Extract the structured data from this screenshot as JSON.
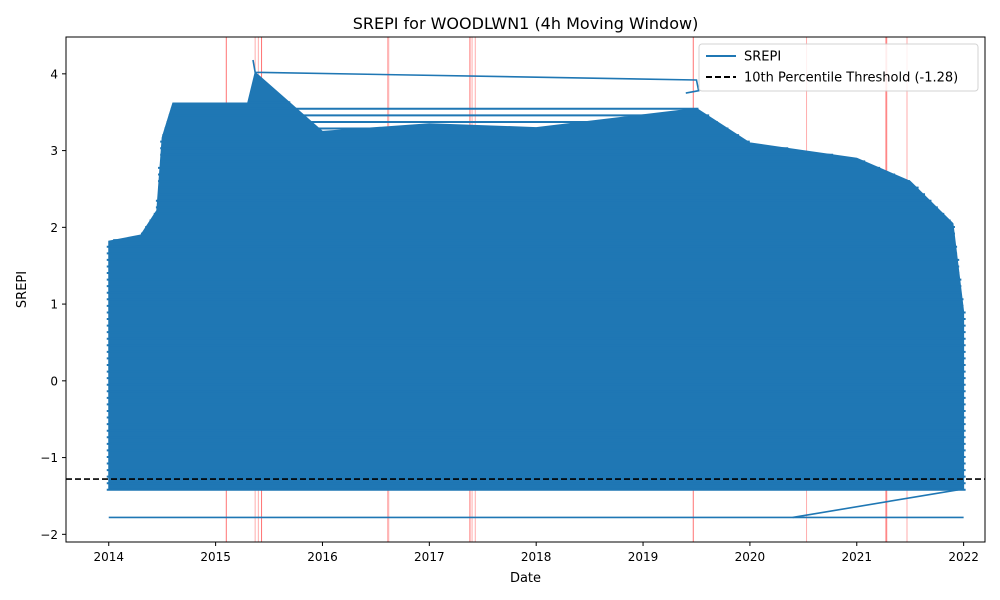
{
  "chart_data": {
    "type": "line",
    "title": "SREPI for WOODLWN1 (4h Moving Window)",
    "xlabel": "Date",
    "ylabel": "SREPI",
    "x_range": [
      2013.6,
      2022.2
    ],
    "y_range": [
      -2.1,
      4.48
    ],
    "x_ticks": [
      "2014",
      "2015",
      "2016",
      "2017",
      "2018",
      "2019",
      "2020",
      "2021",
      "2022"
    ],
    "y_ticks": [
      -2,
      -1,
      0,
      1,
      2,
      3,
      4
    ],
    "grid": false,
    "legend": {
      "placement": "top-right",
      "entries": [
        {
          "label": "SREPI",
          "style": "solid",
          "color": "#1f77b4"
        },
        {
          "label": "10th Percentile Threshold (-1.28)",
          "style": "dashed",
          "color": "#000000"
        }
      ]
    },
    "series": [
      {
        "name": "SREPI",
        "color": "#1f77b4",
        "kind": "dense-band",
        "band_bottom": -1.42,
        "upper_envelope": [
          [
            2014.0,
            1.82
          ],
          [
            2014.3,
            1.9
          ],
          [
            2014.45,
            2.22
          ],
          [
            2014.5,
            3.17
          ],
          [
            2014.6,
            3.62
          ],
          [
            2015.3,
            3.62
          ],
          [
            2015.37,
            4.02
          ],
          [
            2016.0,
            3.25
          ],
          [
            2017.0,
            3.35
          ],
          [
            2018.0,
            3.3
          ],
          [
            2019.5,
            3.55
          ],
          [
            2020.0,
            3.1
          ],
          [
            2020.5,
            3.0
          ],
          [
            2021.0,
            2.9
          ],
          [
            2021.5,
            2.6
          ],
          [
            2021.9,
            2.05
          ],
          [
            2022.0,
            0.9
          ]
        ],
        "extra_lines": [
          {
            "x": [
              2014.0,
              2022.0
            ],
            "y": [
              -1.78,
              -1.78
            ]
          },
          {
            "x": [
              2015.35,
              2015.37,
              2019.5,
              2019.52,
              2019.4
            ],
            "y": [
              4.18,
              4.02,
              3.92,
              3.78,
              3.75
            ]
          },
          {
            "x": [
              2020.4,
              2021.95
            ],
            "y": [
              -1.78,
              -1.42
            ]
          }
        ]
      }
    ],
    "threshold": {
      "value": -1.28,
      "label": "10th Percentile Threshold (-1.28)",
      "color": "#000000",
      "style": "dashed"
    },
    "event_markers": {
      "color": "#ff0000",
      "x": [
        2015.1,
        2015.37,
        2015.4,
        2015.43,
        2016.61,
        2016.62,
        2017.38,
        2017.4,
        2017.43,
        2019.47,
        2020.53,
        2021.27,
        2021.28,
        2021.47
      ]
    }
  }
}
